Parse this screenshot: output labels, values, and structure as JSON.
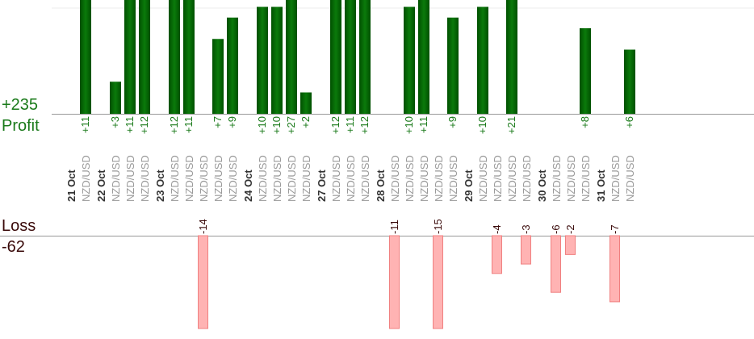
{
  "summary": {
    "profit_total": "+235",
    "profit_label": "Profit",
    "loss_label": "Loss",
    "loss_total": "-62"
  },
  "colors": {
    "profit": "#006400",
    "profit_text": "#1a7a1a",
    "loss": "#ffb3b3",
    "loss_border": "#f08080",
    "loss_text": "#3a0a0a",
    "symbol_text": "#999999",
    "date_text": "#333333"
  },
  "chart_data": {
    "type": "bar",
    "groups": [
      {
        "date": "21 Oct",
        "trades": [
          {
            "symbol": "NZD/USD",
            "value": 11
          }
        ]
      },
      {
        "date": "22 Oct",
        "trades": [
          {
            "symbol": "NZD/USD",
            "value": 3
          },
          {
            "symbol": "NZD/USD",
            "value": 11
          },
          {
            "symbol": "NZD/USD",
            "value": 12
          }
        ]
      },
      {
        "date": "23 Oct",
        "trades": [
          {
            "symbol": "NZD/USD",
            "value": 12
          },
          {
            "symbol": "NZD/USD",
            "value": 11
          },
          {
            "symbol": "NZD/USD",
            "value": -14
          },
          {
            "symbol": "NZD/USD",
            "value": 7
          },
          {
            "symbol": "NZD/USD",
            "value": 9
          }
        ]
      },
      {
        "date": "24 Oct",
        "trades": [
          {
            "symbol": "NZD/USD",
            "value": 10
          },
          {
            "symbol": "NZD/USD",
            "value": 10
          },
          {
            "symbol": "NZD/USD",
            "value": 27
          },
          {
            "symbol": "NZD/USD",
            "value": 2
          }
        ]
      },
      {
        "date": "27 Oct",
        "trades": [
          {
            "symbol": "NZD/USD",
            "value": 12
          },
          {
            "symbol": "NZD/USD",
            "value": 11
          },
          {
            "symbol": "NZD/USD",
            "value": 12
          }
        ]
      },
      {
        "date": "28 Oct",
        "trades": [
          {
            "symbol": "NZD/USD",
            "value": -11
          },
          {
            "symbol": "NZD/USD",
            "value": 10
          },
          {
            "symbol": "NZD/USD",
            "value": 11
          },
          {
            "symbol": "NZD/USD",
            "value": -15
          },
          {
            "symbol": "NZD/USD",
            "value": 9
          }
        ]
      },
      {
        "date": "29 Oct",
        "trades": [
          {
            "symbol": "NZD/USD",
            "value": 10
          },
          {
            "symbol": "NZD/USD",
            "value": -4
          },
          {
            "symbol": "NZD/USD",
            "value": 21
          },
          {
            "symbol": "NZD/USD",
            "value": -3
          }
        ]
      },
      {
        "date": "30 Oct",
        "trades": [
          {
            "symbol": "NZD/USD",
            "value": -6
          },
          {
            "symbol": "NZD/USD",
            "value": -2
          },
          {
            "symbol": "NZD/USD",
            "value": 8
          }
        ]
      },
      {
        "date": "31 Oct",
        "trades": [
          {
            "symbol": "NZD/USD",
            "value": -7
          },
          {
            "symbol": "NZD/USD",
            "value": 6
          }
        ]
      }
    ]
  }
}
